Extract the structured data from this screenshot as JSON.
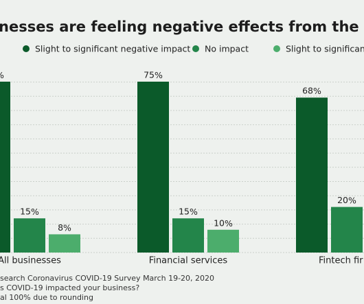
{
  "chart_data": {
    "type": "bar",
    "title": "nesses are feeling negative effects from the panc",
    "categories": [
      "All businesses",
      "Financial services",
      "Fintech fir"
    ],
    "series": [
      {
        "name": "Slight to significant negative impact",
        "color": "#0b5a2a",
        "values": [
          75,
          75,
          68
        ]
      },
      {
        "name": "No impact",
        "color": "#23854a",
        "values": [
          15,
          15,
          20
        ]
      },
      {
        "name": "Slight to significan",
        "color": "#4cad6c",
        "values": [
          8,
          10,
          null
        ]
      }
    ],
    "ylim": [
      0,
      100
    ],
    "notes": [
      "search Coronavirus COVID-19 Survey March 19-20, 2020",
      "s COVID-19 impacted your business?",
      "al 100% due to rounding"
    ]
  }
}
